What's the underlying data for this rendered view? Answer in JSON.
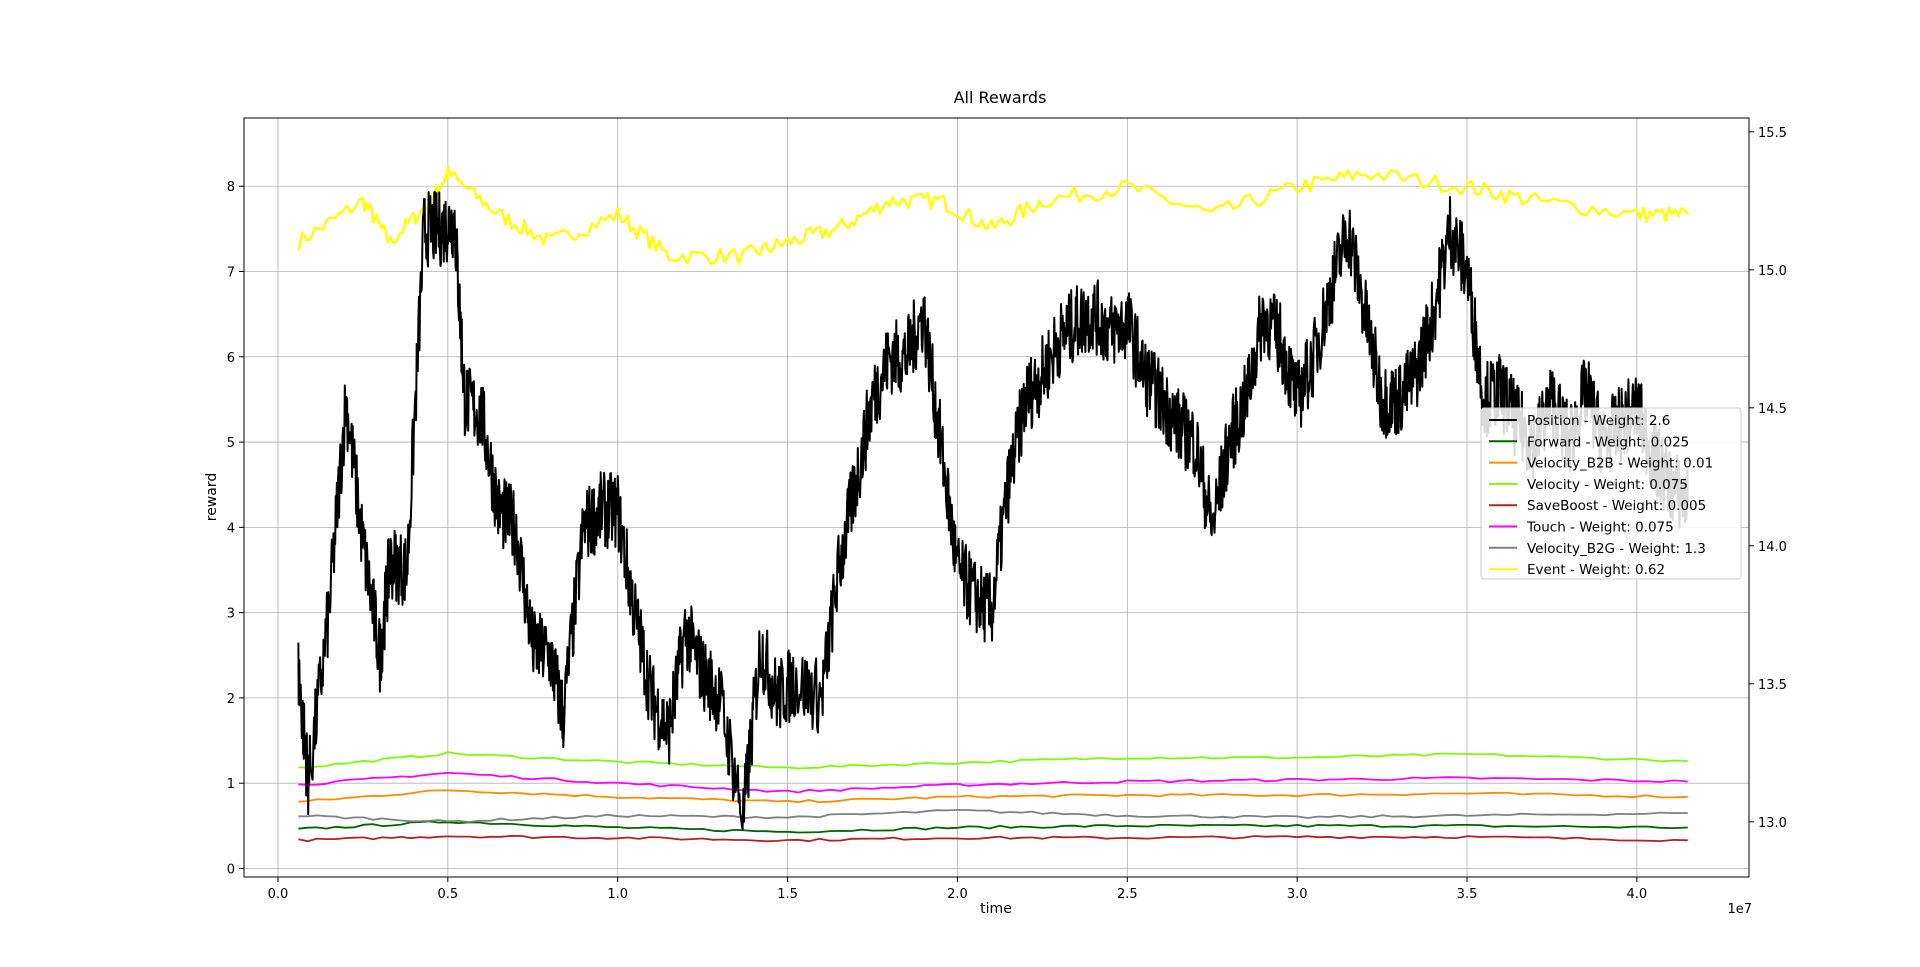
{
  "chart_data": {
    "type": "line",
    "title": "All Rewards",
    "xlabel": "time",
    "ylabel": "reward",
    "x_offset_label": "1e7",
    "xlim": [
      -0.1,
      4.33
    ],
    "ylim": [
      -0.1,
      8.8
    ],
    "y2lim": [
      12.8,
      15.55
    ],
    "grid": true,
    "legend_position": "center-right",
    "x_ticks": [
      "0.0",
      "0.5",
      "1.0",
      "1.5",
      "2.0",
      "2.5",
      "3.0",
      "3.5",
      "4.0"
    ],
    "y_ticks": [
      "0",
      "1",
      "2",
      "3",
      "4",
      "5",
      "6",
      "7",
      "8"
    ],
    "y2_ticks": [
      "13.0",
      "13.5",
      "14.0",
      "14.5",
      "15.0",
      "15.5"
    ],
    "series": [
      {
        "name": "Position - Weight: 2.6",
        "label_visible": "...Weight: 2.6",
        "color": "#000000",
        "axis": "left",
        "x": [
          0.06,
          0.09,
          0.15,
          0.2,
          0.25,
          0.3,
          0.33,
          0.38,
          0.43,
          0.48,
          0.52,
          0.55,
          0.6,
          0.65,
          0.7,
          0.75,
          0.8,
          0.84,
          0.9,
          0.95,
          1.0,
          1.05,
          1.1,
          1.15,
          1.2,
          1.25,
          1.3,
          1.37,
          1.42,
          1.47,
          1.52,
          1.6,
          1.65,
          1.7,
          1.75,
          1.8,
          1.85,
          1.9,
          1.95,
          2.0,
          2.05,
          2.1,
          2.15,
          2.2,
          2.25,
          2.3,
          2.35,
          2.4,
          2.45,
          2.5,
          2.55,
          2.6,
          2.65,
          2.7,
          2.75,
          2.8,
          2.85,
          2.9,
          2.95,
          3.0,
          3.05,
          3.1,
          3.15,
          3.2,
          3.25,
          3.3,
          3.35,
          3.4,
          3.45,
          3.5,
          3.55,
          3.6,
          3.65,
          3.7,
          3.75,
          3.8,
          3.85,
          3.9,
          3.95,
          4.0,
          4.05,
          4.1,
          4.15
        ],
        "values": [
          2.3,
          1.0,
          3.0,
          5.5,
          3.8,
          2.5,
          3.6,
          3.5,
          7.5,
          7.5,
          7.6,
          5.5,
          5.3,
          4.2,
          4.0,
          2.6,
          2.5,
          1.8,
          4.0,
          4.2,
          4.2,
          3.0,
          2.0,
          1.6,
          2.8,
          2.3,
          2.0,
          0.6,
          2.6,
          2.0,
          2.2,
          2.0,
          3.5,
          4.5,
          5.5,
          6.0,
          6.0,
          6.5,
          5.0,
          3.5,
          3.2,
          3.0,
          4.5,
          5.5,
          5.8,
          6.2,
          6.4,
          6.5,
          6.3,
          6.4,
          5.8,
          5.5,
          5.2,
          5.0,
          4.0,
          5.0,
          5.5,
          6.5,
          6.2,
          5.5,
          6.0,
          6.8,
          7.5,
          6.5,
          5.5,
          5.5,
          5.8,
          6.5,
          7.5,
          7.0,
          5.5,
          5.6,
          5.2,
          5.0,
          5.5,
          5.0,
          5.6,
          5.0,
          5.2,
          5.4,
          4.8,
          4.5,
          4.3
        ]
      },
      {
        "name": "Forward - Weight: 0.025",
        "label_visible": "...0.025",
        "color": "#006400",
        "axis": "left",
        "x": [
          0.06,
          0.5,
          1.0,
          1.5,
          2.0,
          2.5,
          3.0,
          3.5,
          4.15
        ],
        "values": [
          0.46,
          0.55,
          0.48,
          0.43,
          0.48,
          0.5,
          0.5,
          0.5,
          0.48
        ]
      },
      {
        "name": "Velocity_B2B - Weight: 0.01",
        "label_visible": "...0.01",
        "color": "#ff8c00",
        "axis": "left",
        "x": [
          0.06,
          0.5,
          1.0,
          1.5,
          2.0,
          2.5,
          3.0,
          3.5,
          4.15
        ],
        "values": [
          0.78,
          0.92,
          0.84,
          0.78,
          0.84,
          0.86,
          0.86,
          0.88,
          0.84
        ]
      },
      {
        "name": "Velocity - Weight: 0.075",
        "label_visible": "...0.075",
        "color": "#7cfc00",
        "axis": "left",
        "x": [
          0.06,
          0.5,
          1.0,
          1.5,
          2.0,
          2.5,
          3.0,
          3.5,
          4.15
        ],
        "values": [
          1.18,
          1.35,
          1.25,
          1.18,
          1.24,
          1.3,
          1.3,
          1.34,
          1.26
        ]
      },
      {
        "name": "SaveBoost - Weight: 0.005",
        "label_visible": "...0.005",
        "color": "#b22222",
        "axis": "left",
        "x": [
          0.06,
          0.5,
          1.0,
          1.5,
          2.0,
          2.5,
          3.0,
          3.5,
          4.15
        ],
        "values": [
          0.33,
          0.38,
          0.36,
          0.33,
          0.36,
          0.36,
          0.37,
          0.37,
          0.33
        ]
      },
      {
        "name": "Touch - Weight: 0.075",
        "label_visible": "...0.075",
        "color": "#ff00ff",
        "axis": "left",
        "x": [
          0.06,
          0.5,
          1.0,
          1.5,
          2.0,
          2.5,
          3.0,
          3.5,
          4.15
        ],
        "values": [
          0.98,
          1.12,
          1.0,
          0.9,
          0.98,
          1.02,
          1.04,
          1.06,
          1.02
        ]
      },
      {
        "name": "Velocity_B2G - Weight: 1.3",
        "label_visible": "Velocity_B2G - Weight: 1.3",
        "color": "#808080",
        "axis": "left",
        "x": [
          0.06,
          0.5,
          1.0,
          1.5,
          2.0,
          2.5,
          3.0,
          3.5,
          4.15
        ],
        "values": [
          0.62,
          0.55,
          0.62,
          0.6,
          0.68,
          0.62,
          0.6,
          0.62,
          0.65
        ]
      },
      {
        "name": "Event - Weight: 0.62",
        "label_visible": "Event - Weight: 0.62",
        "color": "#ffff00",
        "axis": "right",
        "x": [
          0.06,
          0.25,
          0.33,
          0.45,
          0.5,
          0.65,
          0.8,
          1.0,
          1.15,
          1.37,
          1.5,
          1.65,
          1.8,
          1.95,
          2.1,
          2.25,
          2.5,
          2.75,
          3.0,
          3.2,
          3.5,
          3.7,
          4.0,
          4.15
        ],
        "values": [
          15.1,
          15.25,
          15.1,
          15.25,
          15.35,
          15.2,
          15.1,
          15.2,
          15.05,
          15.05,
          15.1,
          15.15,
          15.25,
          15.25,
          15.15,
          15.25,
          15.3,
          15.2,
          15.3,
          15.35,
          15.3,
          15.25,
          15.2,
          15.2
        ]
      }
    ]
  }
}
